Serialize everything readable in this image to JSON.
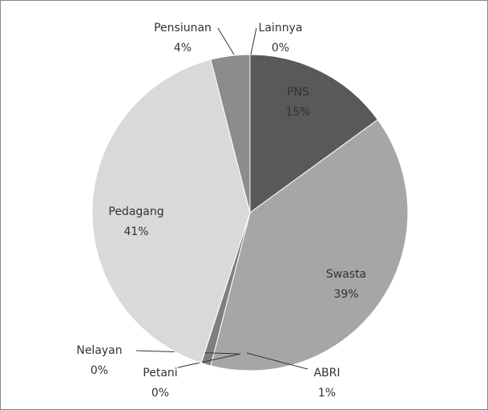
{
  "chart_data": {
    "type": "pie",
    "categories": [
      "PNS",
      "Swasta",
      "ABRI",
      "Petani",
      "Nelayan",
      "Pedagang",
      "Pensiunan",
      "Lainnya"
    ],
    "values": [
      15,
      39,
      1,
      0,
      0,
      41,
      4,
      0
    ],
    "value_labels": [
      "15%",
      "39%",
      "1%",
      "0%",
      "0%",
      "41%",
      "4%",
      "0%"
    ],
    "colors": [
      "#595959",
      "#a6a6a6",
      "#7f7f7f",
      "#bfbfbf",
      "#d0d0d0",
      "#d9d9d9",
      "#8c8c8c",
      "#666666"
    ]
  }
}
